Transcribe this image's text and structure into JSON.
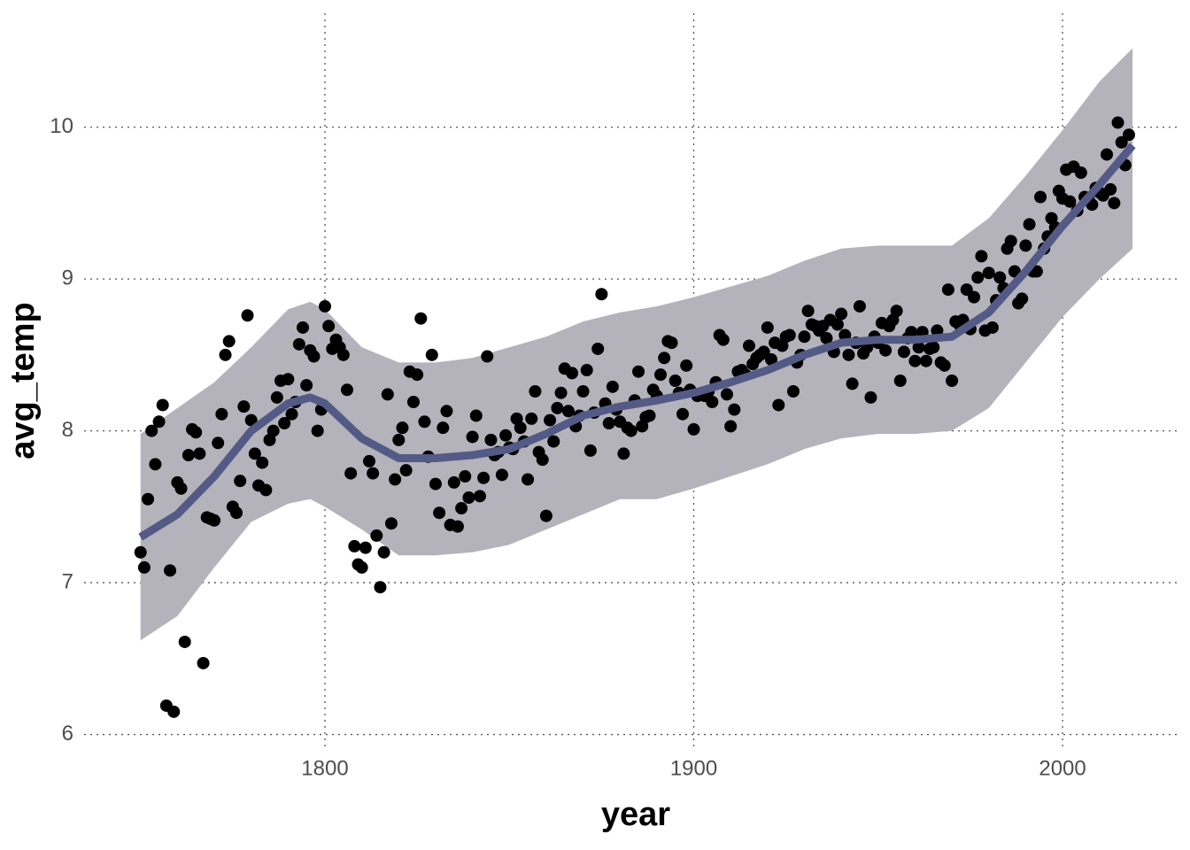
{
  "chart_data": {
    "type": "scatter",
    "x_label": "year",
    "y_label": "avg_temp",
    "xlim": [
      1734.7,
      2031.2
    ],
    "ylim": [
      5.91,
      10.75
    ],
    "xticks": [
      1800,
      1900,
      2000
    ],
    "yticks": [
      6,
      7,
      8,
      9,
      10
    ],
    "grid": true,
    "point_color": "#000000",
    "x": [
      1750,
      1751,
      1752,
      1753,
      1754,
      1755,
      1756,
      1757,
      1758,
      1759,
      1760,
      1761,
      1762,
      1763,
      1764,
      1765,
      1766,
      1767,
      1768,
      1769,
      1770,
      1771,
      1772,
      1773,
      1774,
      1775,
      1776,
      1777,
      1778,
      1779,
      1780,
      1781,
      1782,
      1783,
      1784,
      1785,
      1786,
      1787,
      1788,
      1789,
      1790,
      1791,
      1792,
      1793,
      1794,
      1795,
      1796,
      1797,
      1798,
      1799,
      1800,
      1801,
      1802,
      1803,
      1804,
      1805,
      1806,
      1807,
      1808,
      1809,
      1810,
      1811,
      1812,
      1813,
      1814,
      1815,
      1816,
      1817,
      1818,
      1819,
      1820,
      1821,
      1822,
      1823,
      1824,
      1825,
      1826,
      1827,
      1828,
      1829,
      1830,
      1831,
      1832,
      1833,
      1834,
      1835,
      1836,
      1837,
      1838,
      1839,
      1840,
      1841,
      1842,
      1843,
      1844,
      1845,
      1846,
      1847,
      1848,
      1849,
      1850,
      1851,
      1852,
      1853,
      1854,
      1855,
      1856,
      1857,
      1858,
      1859,
      1860,
      1861,
      1862,
      1863,
      1864,
      1865,
      1866,
      1867,
      1868,
      1869,
      1870,
      1871,
      1872,
      1873,
      1874,
      1875,
      1876,
      1877,
      1878,
      1879,
      1880,
      1881,
      1882,
      1883,
      1884,
      1885,
      1886,
      1887,
      1888,
      1889,
      1890,
      1891,
      1892,
      1893,
      1894,
      1895,
      1896,
      1897,
      1898,
      1899,
      1900,
      1901,
      1902,
      1903,
      1904,
      1905,
      1906,
      1907,
      1908,
      1909,
      1910,
      1911,
      1912,
      1913,
      1914,
      1915,
      1916,
      1917,
      1918,
      1919,
      1920,
      1921,
      1922,
      1923,
      1924,
      1925,
      1926,
      1927,
      1928,
      1929,
      1930,
      1931,
      1932,
      1933,
      1934,
      1935,
      1936,
      1937,
      1938,
      1939,
      1940,
      1941,
      1942,
      1943,
      1944,
      1945,
      1946,
      1947,
      1948,
      1949,
      1950,
      1951,
      1952,
      1953,
      1954,
      1955,
      1956,
      1957,
      1958,
      1959,
      1960,
      1961,
      1962,
      1963,
      1964,
      1965,
      1966,
      1967,
      1968,
      1969,
      1970,
      1971,
      1972,
      1973,
      1974,
      1975,
      1976,
      1977,
      1978,
      1979,
      1980,
      1981,
      1982,
      1983,
      1984,
      1985,
      1986,
      1987,
      1988,
      1989,
      1990,
      1991,
      1992,
      1993,
      1994,
      1995,
      1996,
      1997,
      1998,
      1999,
      2000,
      2001,
      2002,
      2003,
      2004,
      2005,
      2006,
      2007,
      2008,
      2009,
      2010,
      2011,
      2012,
      2013,
      2014,
      2015,
      2016,
      2017,
      2018
    ],
    "values": [
      7.2,
      7.1,
      7.55,
      8.0,
      7.78,
      8.06,
      8.17,
      6.19,
      7.08,
      6.15,
      7.66,
      7.62,
      6.61,
      7.84,
      8.01,
      7.99,
      7.85,
      6.47,
      7.43,
      7.42,
      7.41,
      7.92,
      8.11,
      8.5,
      8.59,
      7.5,
      7.46,
      7.67,
      8.16,
      8.76,
      8.07,
      7.85,
      7.64,
      7.79,
      7.61,
      7.94,
      8.0,
      8.22,
      8.33,
      8.05,
      8.34,
      8.11,
      8.19,
      8.57,
      8.68,
      8.3,
      8.53,
      8.49,
      8.0,
      8.14,
      8.82,
      8.69,
      8.54,
      8.6,
      8.55,
      8.5,
      8.27,
      7.72,
      7.24,
      7.12,
      7.1,
      7.23,
      7.8,
      7.72,
      7.31,
      6.97,
      7.2,
      8.24,
      7.39,
      7.68,
      7.94,
      8.02,
      7.74,
      8.39,
      8.19,
      8.37,
      8.74,
      8.06,
      7.83,
      8.5,
      7.65,
      7.46,
      8.02,
      8.13,
      7.38,
      7.66,
      7.37,
      7.49,
      7.7,
      7.56,
      7.96,
      8.1,
      7.57,
      7.69,
      8.49,
      7.94,
      7.84,
      7.86,
      7.71,
      7.97,
      7.89,
      7.88,
      8.08,
      8.02,
      7.93,
      7.68,
      8.08,
      8.26,
      7.86,
      7.81,
      7.44,
      8.07,
      7.93,
      8.15,
      8.25,
      8.41,
      8.13,
      8.38,
      8.03,
      8.1,
      8.26,
      8.4,
      7.87,
      8.12,
      8.54,
      8.9,
      8.18,
      8.05,
      8.29,
      8.14,
      8.06,
      7.85,
      8.02,
      8.0,
      8.2,
      8.39,
      8.03,
      8.09,
      8.1,
      8.27,
      8.23,
      8.37,
      8.48,
      8.59,
      8.58,
      8.33,
      8.25,
      8.11,
      8.43,
      8.27,
      8.01,
      8.23,
      8.24,
      8.23,
      8.26,
      8.19,
      8.32,
      8.63,
      8.6,
      8.24,
      8.03,
      8.14,
      8.39,
      8.4,
      8.37,
      8.56,
      8.44,
      8.48,
      8.5,
      8.52,
      8.68,
      8.47,
      8.58,
      8.17,
      8.56,
      8.62,
      8.63,
      8.26,
      8.45,
      8.5,
      8.62,
      8.79,
      8.7,
      8.69,
      8.66,
      8.69,
      8.61,
      8.73,
      8.52,
      8.7,
      8.77,
      8.63,
      8.5,
      8.31,
      8.58,
      8.82,
      8.51,
      8.55,
      8.22,
      8.62,
      8.58,
      8.71,
      8.53,
      8.69,
      8.73,
      8.79,
      8.33,
      8.52,
      8.61,
      8.65,
      8.46,
      8.55,
      8.65,
      8.46,
      8.54,
      8.55,
      8.66,
      8.45,
      8.43,
      8.93,
      8.33,
      8.72,
      8.7,
      8.73,
      8.93,
      8.67,
      8.88,
      9.01,
      9.15,
      8.66,
      9.04,
      8.68,
      8.86,
      9.01,
      8.94,
      9.2,
      9.25,
      9.05,
      8.84,
      8.87,
      9.22,
      9.36,
      9.05,
      9.05,
      9.54,
      9.2,
      9.28,
      9.4,
      9.34,
      9.58,
      9.53,
      9.72,
      9.51,
      9.74,
      9.45,
      9.7,
      9.54,
      9.53,
      9.49,
      9.6,
      9.57,
      9.55,
      9.82,
      9.59,
      9.5,
      10.03,
      9.9,
      9.75,
      9.95
    ],
    "smooth": {
      "color": "#545a86",
      "band_color": "#b4b2ba",
      "x": [
        1750,
        1760,
        1770,
        1780,
        1790,
        1796,
        1800,
        1810,
        1820,
        1830,
        1840,
        1850,
        1860,
        1870,
        1880,
        1890,
        1900,
        1910,
        1920,
        1930,
        1940,
        1950,
        1960,
        1970,
        1980,
        1990,
        2000,
        2010,
        2019
      ],
      "values": [
        7.3,
        7.45,
        7.7,
        8.0,
        8.18,
        8.22,
        8.18,
        7.95,
        7.82,
        7.82,
        7.84,
        7.88,
        7.98,
        8.1,
        8.16,
        8.2,
        8.25,
        8.32,
        8.4,
        8.5,
        8.58,
        8.6,
        8.6,
        8.62,
        8.78,
        9.05,
        9.35,
        9.62,
        9.88
      ],
      "lower": [
        6.62,
        6.78,
        7.1,
        7.4,
        7.52,
        7.55,
        7.5,
        7.35,
        7.18,
        7.18,
        7.2,
        7.25,
        7.35,
        7.45,
        7.55,
        7.55,
        7.62,
        7.7,
        7.78,
        7.88,
        7.95,
        7.98,
        7.98,
        8.0,
        8.15,
        8.45,
        8.75,
        9.0,
        9.2
      ],
      "upper": [
        7.98,
        8.15,
        8.32,
        8.55,
        8.8,
        8.85,
        8.8,
        8.55,
        8.45,
        8.45,
        8.48,
        8.55,
        8.62,
        8.72,
        8.78,
        8.82,
        8.88,
        8.95,
        9.02,
        9.12,
        9.2,
        9.22,
        9.22,
        9.22,
        9.4,
        9.68,
        9.98,
        10.3,
        10.52
      ]
    }
  }
}
